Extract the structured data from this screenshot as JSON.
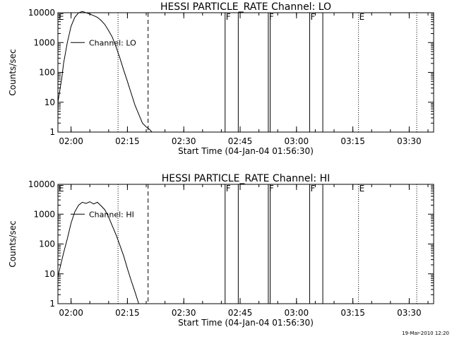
{
  "chart_data": [
    {
      "type": "line",
      "title": "HESSI PARTICLE_RATE Channel: LO",
      "ylabel": "Counts/sec",
      "xlabel": "Start Time (04-Jan-04 01:56:30)",
      "xlim": [
        "01:56:30",
        "03:36:30"
      ],
      "ylim": [
        1,
        10000
      ],
      "yscale": "log",
      "grid": false,
      "xticks": [
        "02:00",
        "02:15",
        "02:30",
        "02:45",
        "03:00",
        "03:15",
        "03:30"
      ],
      "yticks": [
        "1",
        "10",
        "100",
        "1000",
        "10000"
      ],
      "series": [
        {
          "name": "Channel: LO",
          "x": [
            "01:56:30",
            "01:57:00",
            "01:57:30",
            "01:58:00",
            "01:59:00",
            "02:00:00",
            "02:01:00",
            "02:02:00",
            "02:03:00",
            "02:04:00",
            "02:05:00",
            "02:06:00",
            "02:07:00",
            "02:08:00",
            "02:09:00",
            "02:10:00",
            "02:11:00",
            "02:12:00",
            "02:13:00",
            "02:14:00",
            "02:15:00",
            "02:16:00",
            "02:17:00",
            "02:18:00",
            "02:19:00",
            "02:20:00",
            "02:21:00",
            "02:21:30"
          ],
          "values": [
            10,
            25,
            60,
            200,
            1000,
            3500,
            7000,
            10000,
            11000,
            10000,
            9000,
            8000,
            7000,
            5500,
            4000,
            2500,
            1500,
            700,
            300,
            120,
            50,
            20,
            8,
            4,
            2,
            1.5,
            1.2,
            1
          ]
        }
      ],
      "annotations": {
        "markers": [
          {
            "label": "E",
            "time": "01:56:30"
          },
          {
            "label": "F",
            "time": "02:41:00"
          },
          {
            "label": "F",
            "time": "02:52:30"
          },
          {
            "label": "F",
            "time": "03:03:30"
          },
          {
            "label": "E",
            "time": "03:16:30"
          }
        ],
        "solid_lines": [
          "02:41:00",
          "02:44:30",
          "02:52:30",
          "02:53:00",
          "03:03:30",
          "03:07:00"
        ],
        "dotted_lines": [
          "02:12:30",
          "03:16:30",
          "03:32:00"
        ],
        "dashed_lines": [
          "02:20:30"
        ]
      }
    },
    {
      "type": "line",
      "title": "HESSI PARTICLE_RATE Channel: HI",
      "ylabel": "Counts/sec",
      "xlabel": "Start Time (04-Jan-04 01:56:30)",
      "xlim": [
        "01:56:30",
        "03:36:30"
      ],
      "ylim": [
        1,
        10000
      ],
      "yscale": "log",
      "grid": false,
      "xticks": [
        "02:00",
        "02:15",
        "02:30",
        "02:45",
        "03:00",
        "03:15",
        "03:30"
      ],
      "yticks": [
        "1",
        "10",
        "100",
        "1000",
        "10000"
      ],
      "series": [
        {
          "name": "Channel: HI",
          "x": [
            "01:56:30",
            "01:57:00",
            "01:58:00",
            "01:59:00",
            "02:00:00",
            "02:01:00",
            "02:02:00",
            "02:03:00",
            "02:04:00",
            "02:05:00",
            "02:06:00",
            "02:07:00",
            "02:08:00",
            "02:09:00",
            "02:10:00",
            "02:11:00",
            "02:12:00",
            "02:13:00",
            "02:14:00",
            "02:15:00",
            "02:16:00",
            "02:17:00",
            "02:18:00"
          ],
          "values": [
            8,
            15,
            50,
            150,
            500,
            1200,
            2000,
            2500,
            2300,
            2600,
            2200,
            2500,
            1900,
            1400,
            800,
            400,
            200,
            90,
            40,
            15,
            6,
            2.5,
            1
          ]
        }
      ],
      "annotations": {
        "markers": [
          {
            "label": "E",
            "time": "01:56:30"
          },
          {
            "label": "F",
            "time": "02:41:00"
          },
          {
            "label": "F",
            "time": "02:52:30"
          },
          {
            "label": "F",
            "time": "03:03:30"
          },
          {
            "label": "E",
            "time": "03:16:30"
          }
        ],
        "solid_lines": [
          "02:41:00",
          "02:44:30",
          "02:52:30",
          "02:53:00",
          "03:03:30",
          "03:07:00"
        ],
        "dotted_lines": [
          "02:12:30",
          "03:16:30",
          "03:32:00"
        ],
        "dashed_lines": [
          "02:20:30"
        ]
      }
    }
  ],
  "footer": {
    "timestamp": "19-Mar-2010 12:20"
  }
}
